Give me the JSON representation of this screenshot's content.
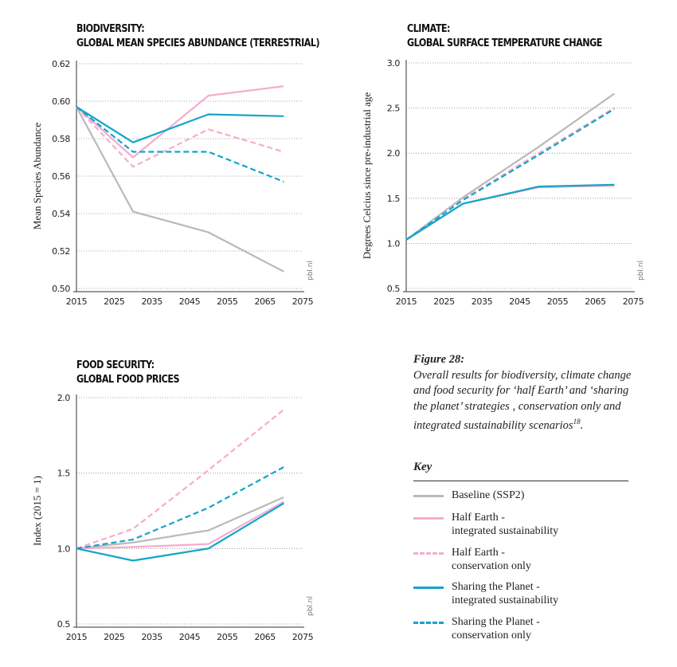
{
  "colors": {
    "baseline": "#b9b9b9",
    "half_earth": "#f4acd0",
    "sharing_planet": "#12a5c9",
    "grid": "#8c8c8c",
    "axis": "#333333"
  },
  "chart_data": [
    {
      "id": "biodiversity",
      "type": "line",
      "title_lines": [
        "BIODIVERSITY:",
        "GLOBAL MEAN SPECIES ABUNDANCE (TERRESTRIAL)"
      ],
      "ylabel": "Mean Species Abundance",
      "source_mark": "pbl.nl",
      "xlim": [
        2015,
        2075
      ],
      "xticks": [
        2015,
        2025,
        2035,
        2045,
        2055,
        2065,
        2075
      ],
      "ylim": [
        0.5,
        0.62
      ],
      "yticks": [
        0.5,
        0.52,
        0.54,
        0.56,
        0.58,
        0.6,
        0.62
      ],
      "ytick_decimals": 2,
      "grid": "horizontal dotted",
      "series": [
        {
          "key": "baseline",
          "dashed": false,
          "x": [
            2015,
            2030,
            2050,
            2070
          ],
          "y": [
            0.597,
            0.541,
            0.53,
            0.509
          ]
        },
        {
          "key": "half_earth",
          "dashed": false,
          "x": [
            2015,
            2030,
            2050,
            2070
          ],
          "y": [
            0.597,
            0.57,
            0.603,
            0.608
          ]
        },
        {
          "key": "half_earth",
          "dashed": true,
          "x": [
            2015,
            2030,
            2050,
            2070
          ],
          "y": [
            0.597,
            0.565,
            0.585,
            0.573
          ]
        },
        {
          "key": "sharing_planet",
          "dashed": false,
          "x": [
            2015,
            2030,
            2050,
            2070
          ],
          "y": [
            0.597,
            0.578,
            0.593,
            0.592
          ]
        },
        {
          "key": "sharing_planet",
          "dashed": true,
          "x": [
            2015,
            2030,
            2050,
            2070
          ],
          "y": [
            0.597,
            0.573,
            0.573,
            0.557
          ]
        }
      ]
    },
    {
      "id": "climate",
      "type": "line",
      "title_lines": [
        "CLIMATE:",
        "GLOBAL SURFACE TEMPERATURE CHANGE"
      ],
      "ylabel": "Degrees Celcius since pre-industrial age",
      "source_mark": "pbl.nl",
      "xlim": [
        2015,
        2075
      ],
      "xticks": [
        2015,
        2025,
        2035,
        2045,
        2055,
        2065,
        2075
      ],
      "ylim": [
        0.5,
        3.0
      ],
      "yticks": [
        0.5,
        1.0,
        1.5,
        2.0,
        2.5,
        3.0
      ],
      "ytick_decimals": 1,
      "grid": "horizontal dotted",
      "series": [
        {
          "key": "baseline",
          "dashed": false,
          "x": [
            2015,
            2030,
            2050,
            2070
          ],
          "y": [
            1.04,
            1.51,
            2.07,
            2.66
          ]
        },
        {
          "key": "half_earth",
          "dashed": false,
          "x": [
            2015,
            2030,
            2050,
            2070
          ],
          "y": [
            1.04,
            1.44,
            1.62,
            1.64
          ]
        },
        {
          "key": "half_earth",
          "dashed": true,
          "x": [
            2015,
            2030,
            2050,
            2070
          ],
          "y": [
            1.04,
            1.49,
            2.0,
            2.5
          ]
        },
        {
          "key": "sharing_planet",
          "dashed": false,
          "x": [
            2015,
            2030,
            2050,
            2070
          ],
          "y": [
            1.04,
            1.44,
            1.63,
            1.65
          ]
        },
        {
          "key": "sharing_planet",
          "dashed": true,
          "x": [
            2015,
            2030,
            2050,
            2070
          ],
          "y": [
            1.04,
            1.48,
            1.98,
            2.49
          ]
        }
      ]
    },
    {
      "id": "food",
      "type": "line",
      "title_lines": [
        "FOOD SECURITY:",
        "GLOBAL FOOD PRICES"
      ],
      "ylabel": "Index (2015 = 1)",
      "source_mark": "pbl.nl",
      "xlim": [
        2015,
        2075
      ],
      "xticks": [
        2015,
        2025,
        2035,
        2045,
        2055,
        2065,
        2075
      ],
      "ylim": [
        0.5,
        2.0
      ],
      "yticks": [
        0.5,
        1.0,
        1.5,
        2.0
      ],
      "ytick_decimals": 1,
      "grid": "horizontal dotted",
      "series": [
        {
          "key": "baseline",
          "dashed": false,
          "x": [
            2015,
            2030,
            2050,
            2070
          ],
          "y": [
            1.0,
            1.04,
            1.12,
            1.34
          ]
        },
        {
          "key": "half_earth",
          "dashed": false,
          "x": [
            2015,
            2030,
            2050,
            2070
          ],
          "y": [
            1.0,
            1.01,
            1.03,
            1.31
          ]
        },
        {
          "key": "half_earth",
          "dashed": true,
          "x": [
            2015,
            2030,
            2050,
            2070
          ],
          "y": [
            1.0,
            1.13,
            1.52,
            1.92
          ]
        },
        {
          "key": "sharing_planet",
          "dashed": false,
          "x": [
            2015,
            2030,
            2050,
            2070
          ],
          "y": [
            1.0,
            0.92,
            1.0,
            1.3
          ]
        },
        {
          "key": "sharing_planet",
          "dashed": true,
          "x": [
            2015,
            2030,
            2050,
            2070
          ],
          "y": [
            1.0,
            1.06,
            1.27,
            1.54
          ]
        }
      ]
    }
  ],
  "caption": {
    "heading": "Figure 28:",
    "body": "Overall results for biodiversity, climate change and food security for ‘half Earth’ and ‘sharing the planet’ strategies , conservation only and integrated sustainability scenarios",
    "footnote_ref": "18",
    "end": "."
  },
  "legend": {
    "title": "Key",
    "items": [
      {
        "key": "baseline",
        "dashed": false,
        "line1": "Baseline (SSP2)",
        "line2": ""
      },
      {
        "key": "half_earth",
        "dashed": false,
        "line1": "Half Earth -",
        "line2": "integrated sustainability"
      },
      {
        "key": "half_earth",
        "dashed": true,
        "line1": "Half Earth -",
        "line2": "conservation only"
      },
      {
        "key": "sharing_planet",
        "dashed": false,
        "line1": "Sharing the Planet -",
        "line2": "integrated sustainability"
      },
      {
        "key": "sharing_planet",
        "dashed": true,
        "line1": "Sharing the Planet -",
        "line2": "conservation only"
      }
    ]
  }
}
